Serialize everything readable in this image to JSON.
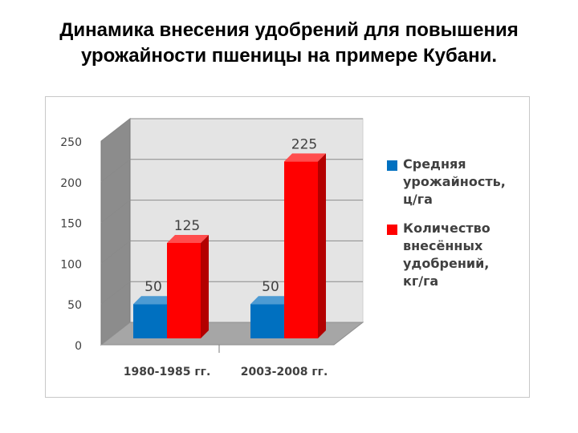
{
  "title": {
    "line1": "Динамика внесения удобрений для повышения",
    "line2": "урожайности пшеницы на примере Кубани."
  },
  "chart_data": {
    "type": "bar",
    "title": "",
    "xlabel": "",
    "ylabel": "",
    "categories": [
      "1980-1985 гг.",
      "2003-2008 гг."
    ],
    "series": [
      {
        "name": "Средняя урожайность, ц/га",
        "values": [
          50,
          50
        ],
        "color": "#0070C0"
      },
      {
        "name": "Количество внесённых удобрений, кг/га",
        "values": [
          125,
          225
        ],
        "color": "#FF0000"
      }
    ],
    "ylim": [
      0,
      250
    ],
    "yticks": [
      "0",
      "50",
      "100",
      "150",
      "200",
      "250"
    ],
    "data_labels": true,
    "grid": true,
    "legend_position": "right",
    "style": "3d-column"
  },
  "legend": {
    "items": [
      {
        "lines": [
          "Средняя",
          "урожайность,",
          "ц/га"
        ],
        "color": "#0070C0"
      },
      {
        "lines": [
          "Количество",
          "внесённых",
          "удобрений,",
          "кг/га"
        ],
        "color": "#FF0000"
      }
    ]
  }
}
